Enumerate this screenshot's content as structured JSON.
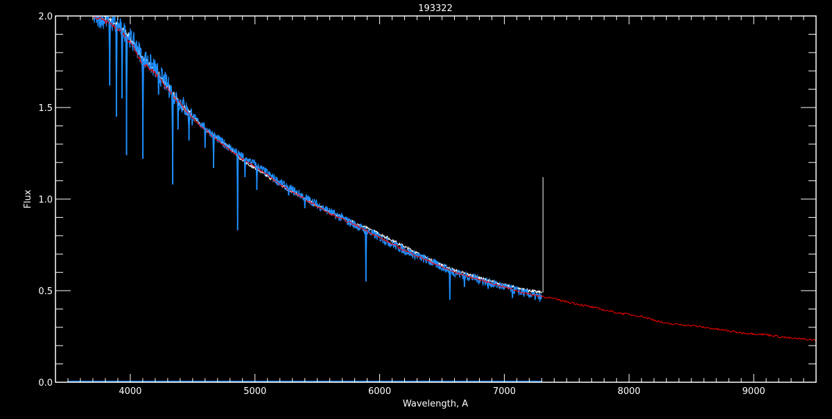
{
  "chart_data": {
    "type": "line",
    "title": "193322",
    "xlabel": "Wavelength, A",
    "ylabel": "Flux",
    "xlim": [
      3400,
      9500
    ],
    "ylim": [
      0.0,
      2.0
    ],
    "xticks": [
      4000,
      5000,
      6000,
      7000,
      8000,
      9000
    ],
    "xtick_labels": [
      "4000",
      "5000",
      "6000",
      "7000",
      "8000",
      "9000"
    ],
    "yticks": [
      0.0,
      0.5,
      1.0,
      1.5,
      2.0
    ],
    "ytick_labels": [
      "0.0",
      "0.5",
      "1.0",
      "1.5",
      "2.0"
    ],
    "x_minor_step": 100,
    "y_minor_step": 0.1,
    "grid": false,
    "legend": "none",
    "background": "#000000",
    "series": [
      {
        "color": "#ffffff",
        "x": [
          3700,
          3800,
          3900,
          4000,
          4100,
          4200,
          4300,
          4400,
          4500,
          4600,
          4700,
          4800,
          4900,
          5000,
          5200,
          5400,
          5600,
          5800,
          6000,
          6200,
          6400,
          6600,
          6800,
          7000,
          7200,
          7300
        ],
        "y": [
          2.05,
          2.0,
          1.95,
          1.88,
          1.77,
          1.7,
          1.62,
          1.52,
          1.45,
          1.38,
          1.33,
          1.28,
          1.21,
          1.17,
          1.08,
          1.0,
          0.93,
          0.87,
          0.81,
          0.74,
          0.67,
          0.61,
          0.57,
          0.53,
          0.5,
          0.49
        ],
        "spike": {
          "x": 7310,
          "y": 1.12
        }
      },
      {
        "color": "#1e8fff",
        "x": [
          3700,
          3800,
          3900,
          4000,
          4100,
          4200,
          4300,
          4400,
          4500,
          4600,
          4700,
          4800,
          4900,
          5000,
          5200,
          5400,
          5600,
          5800,
          6000,
          6200,
          6400,
          6600,
          6800,
          7000,
          7200,
          7300
        ],
        "y": [
          2.0,
          1.98,
          1.95,
          1.88,
          1.78,
          1.71,
          1.62,
          1.53,
          1.45,
          1.39,
          1.33,
          1.28,
          1.23,
          1.19,
          1.09,
          1.01,
          0.93,
          0.86,
          0.79,
          0.72,
          0.66,
          0.6,
          0.56,
          0.52,
          0.48,
          0.46
        ],
        "absorption_lines": [
          {
            "x": 3835,
            "y": 1.62
          },
          {
            "x": 3889,
            "y": 1.45
          },
          {
            "x": 3934,
            "y": 1.55
          },
          {
            "x": 3970,
            "y": 1.24
          },
          {
            "x": 4101,
            "y": 1.22
          },
          {
            "x": 4227,
            "y": 1.57
          },
          {
            "x": 4340,
            "y": 1.08
          },
          {
            "x": 4383,
            "y": 1.38
          },
          {
            "x": 4471,
            "y": 1.32
          },
          {
            "x": 4600,
            "y": 1.28
          },
          {
            "x": 4668,
            "y": 1.17
          },
          {
            "x": 4861,
            "y": 0.83
          },
          {
            "x": 4920,
            "y": 1.12
          },
          {
            "x": 5015,
            "y": 1.05
          },
          {
            "x": 5270,
            "y": 1.02
          },
          {
            "x": 5400,
            "y": 0.95
          },
          {
            "x": 5890,
            "y": 0.55
          },
          {
            "x": 6563,
            "y": 0.45
          },
          {
            "x": 6680,
            "y": 0.52
          },
          {
            "x": 6870,
            "y": 0.51
          },
          {
            "x": 7065,
            "y": 0.46
          }
        ],
        "error_level": 0.005
      },
      {
        "color": "#ff0000",
        "x": [
          3700,
          3800,
          3900,
          4000,
          4100,
          4200,
          4300,
          4400,
          4500,
          4600,
          4700,
          4800,
          4900,
          5000,
          5200,
          5400,
          5600,
          5800,
          6000,
          6200,
          6400,
          6600,
          6800,
          7000,
          7200,
          7300,
          7500,
          7700,
          7900,
          8100,
          8200,
          8300,
          8500,
          8700,
          8900,
          9100,
          9300,
          9500
        ],
        "y": [
          2.0,
          1.97,
          1.93,
          1.86,
          1.74,
          1.69,
          1.6,
          1.52,
          1.44,
          1.38,
          1.32,
          1.27,
          1.22,
          1.18,
          1.08,
          1.0,
          0.92,
          0.86,
          0.79,
          0.72,
          0.66,
          0.6,
          0.56,
          0.52,
          0.48,
          0.47,
          0.44,
          0.41,
          0.38,
          0.36,
          0.34,
          0.32,
          0.31,
          0.29,
          0.27,
          0.26,
          0.24,
          0.23
        ]
      }
    ]
  }
}
